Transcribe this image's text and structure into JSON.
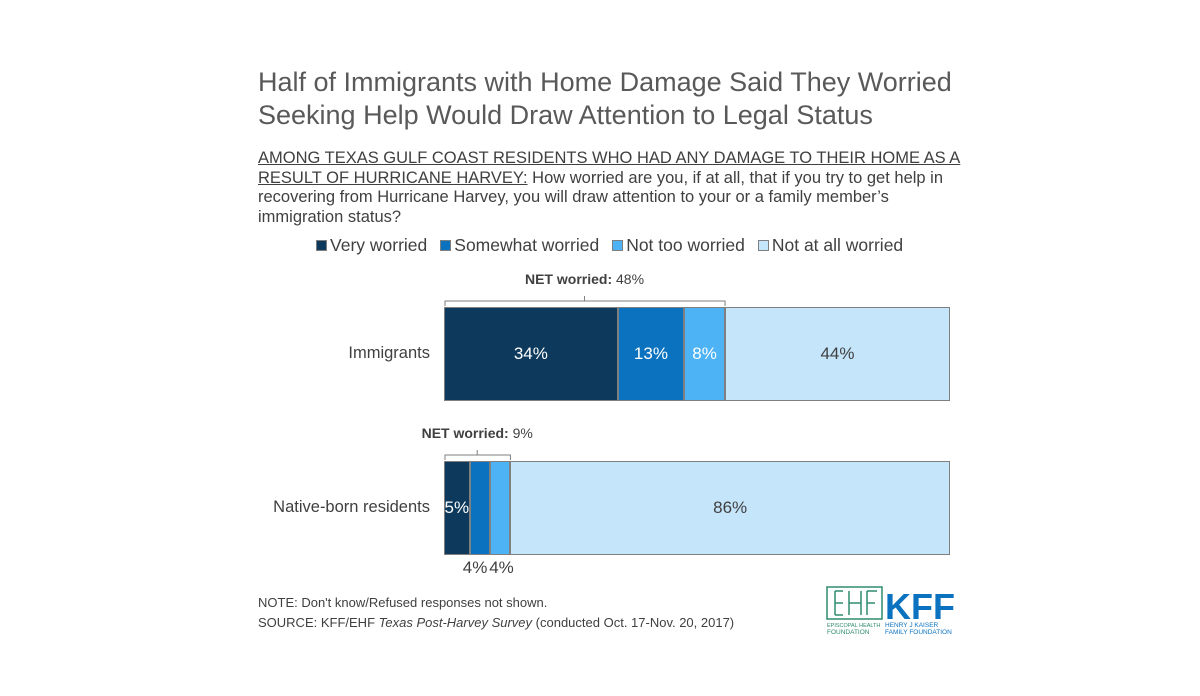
{
  "chart_data": {
    "type": "bar",
    "orientation": "horizontal-stacked",
    "title": "Half of Immigrants with Home Damage Said They Worried Seeking Help Would Draw Attention to Legal Status",
    "subtitle_underlined": "AMONG TEXAS GULF COAST RESIDENTS WHO HAD ANY DAMAGE TO THEIR HOME AS A RESULT OF HURRICANE HARVEY:",
    "subtitle": " How worried are you, if at all, that if you try to get help in recovering from Hurricane Harvey, you will draw attention to your or a family member’s immigration status?",
    "categories": [
      "Immigrants",
      "Native-born residents"
    ],
    "series": [
      {
        "name": "Very worried",
        "color": "#0d3a5c",
        "text_color": "#ffffff",
        "values": [
          34,
          5
        ]
      },
      {
        "name": "Somewhat worried",
        "color": "#0b72c0",
        "text_color": "#ffffff",
        "values": [
          13,
          4
        ]
      },
      {
        "name": "Not too worried",
        "color": "#4db3f5",
        "text_color": "#ffffff",
        "values": [
          8,
          4
        ]
      },
      {
        "name": "Not at all worried",
        "color": "#c5e5fb",
        "text_color": "#404040",
        "values": [
          44,
          86
        ]
      }
    ],
    "data_labels": [
      [
        "34%",
        "13%",
        "8%",
        "44%"
      ],
      [
        "5%",
        "4%",
        "4%",
        "86%"
      ]
    ],
    "net": [
      {
        "label": "NET worried:",
        "value": "48%"
      },
      {
        "label": "NET worried:",
        "value": "9%"
      }
    ],
    "legend": "top"
  },
  "footer": {
    "note": "NOTE: Don't know/Refused responses not shown.",
    "source_prefix": "SOURCE: KFF/EHF ",
    "source_italic": "Texas Post-Harvey Survey",
    "source_suffix": " (conducted Oct. 17-Nov. 20, 2017)"
  },
  "logos": {
    "ehf": "EHF",
    "ehf_sub1": "EPISCOPAL HEALTH",
    "ehf_sub2": "FOUNDATION",
    "kff": "KFF",
    "kff_sub1": "HENRY J KAISER",
    "kff_sub2": "FAMILY FOUNDATION",
    "color_ehf": "#2e8b6e",
    "color_kff": "#0b72c0"
  }
}
